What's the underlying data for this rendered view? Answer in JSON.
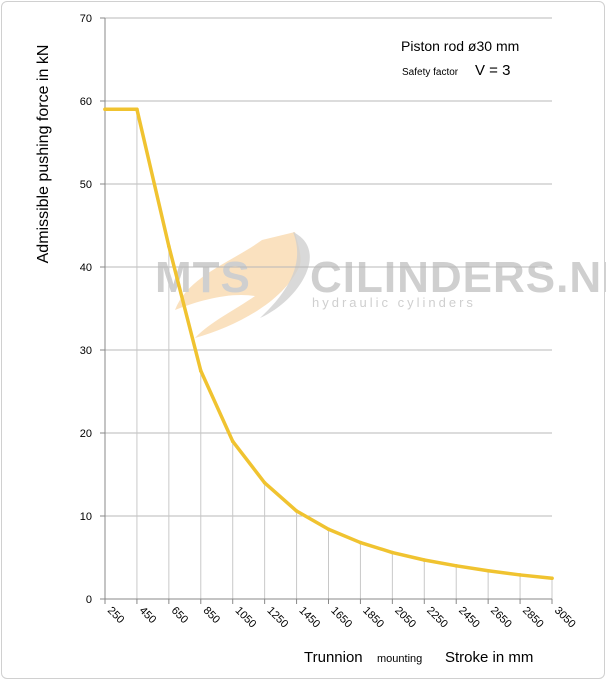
{
  "chart_data": {
    "type": "line",
    "ylabel": "Admissible pushing force in kN",
    "ylim": [
      0,
      70
    ],
    "yticks": [
      "0",
      "10",
      "20",
      "30",
      "40",
      "50",
      "60",
      "70"
    ],
    "categories": [
      "250",
      "450",
      "650",
      "850",
      "1050",
      "1250",
      "1450",
      "1650",
      "1850",
      "2050",
      "2250",
      "2450",
      "2650",
      "2850",
      "3050"
    ],
    "x": [
      250,
      450,
      650,
      850,
      1050,
      1250,
      1450,
      1650,
      1850,
      2050,
      2250,
      2450,
      2650,
      2850,
      3050
    ],
    "values": [
      59,
      59,
      42.5,
      27.5,
      19,
      14,
      10.6,
      8.4,
      6.8,
      5.6,
      4.7,
      4.0,
      3.4,
      2.9,
      2.5
    ],
    "line_color": "#f0c330",
    "grid": true,
    "annotations": {
      "title_line1": "Piston rod ø30 mm",
      "safety_label": "Safety factor",
      "safety_value": "V = 3"
    },
    "xlabel": {
      "trunnion": "Trunnion",
      "mounting": "mounting",
      "stroke": "Stroke in mm"
    }
  },
  "watermark": {
    "brand_left": "MTS",
    "brand_right": "CILINDERS.NL",
    "tagline": "hydraulic cylinders",
    "accent_color": "#f5c98a"
  }
}
